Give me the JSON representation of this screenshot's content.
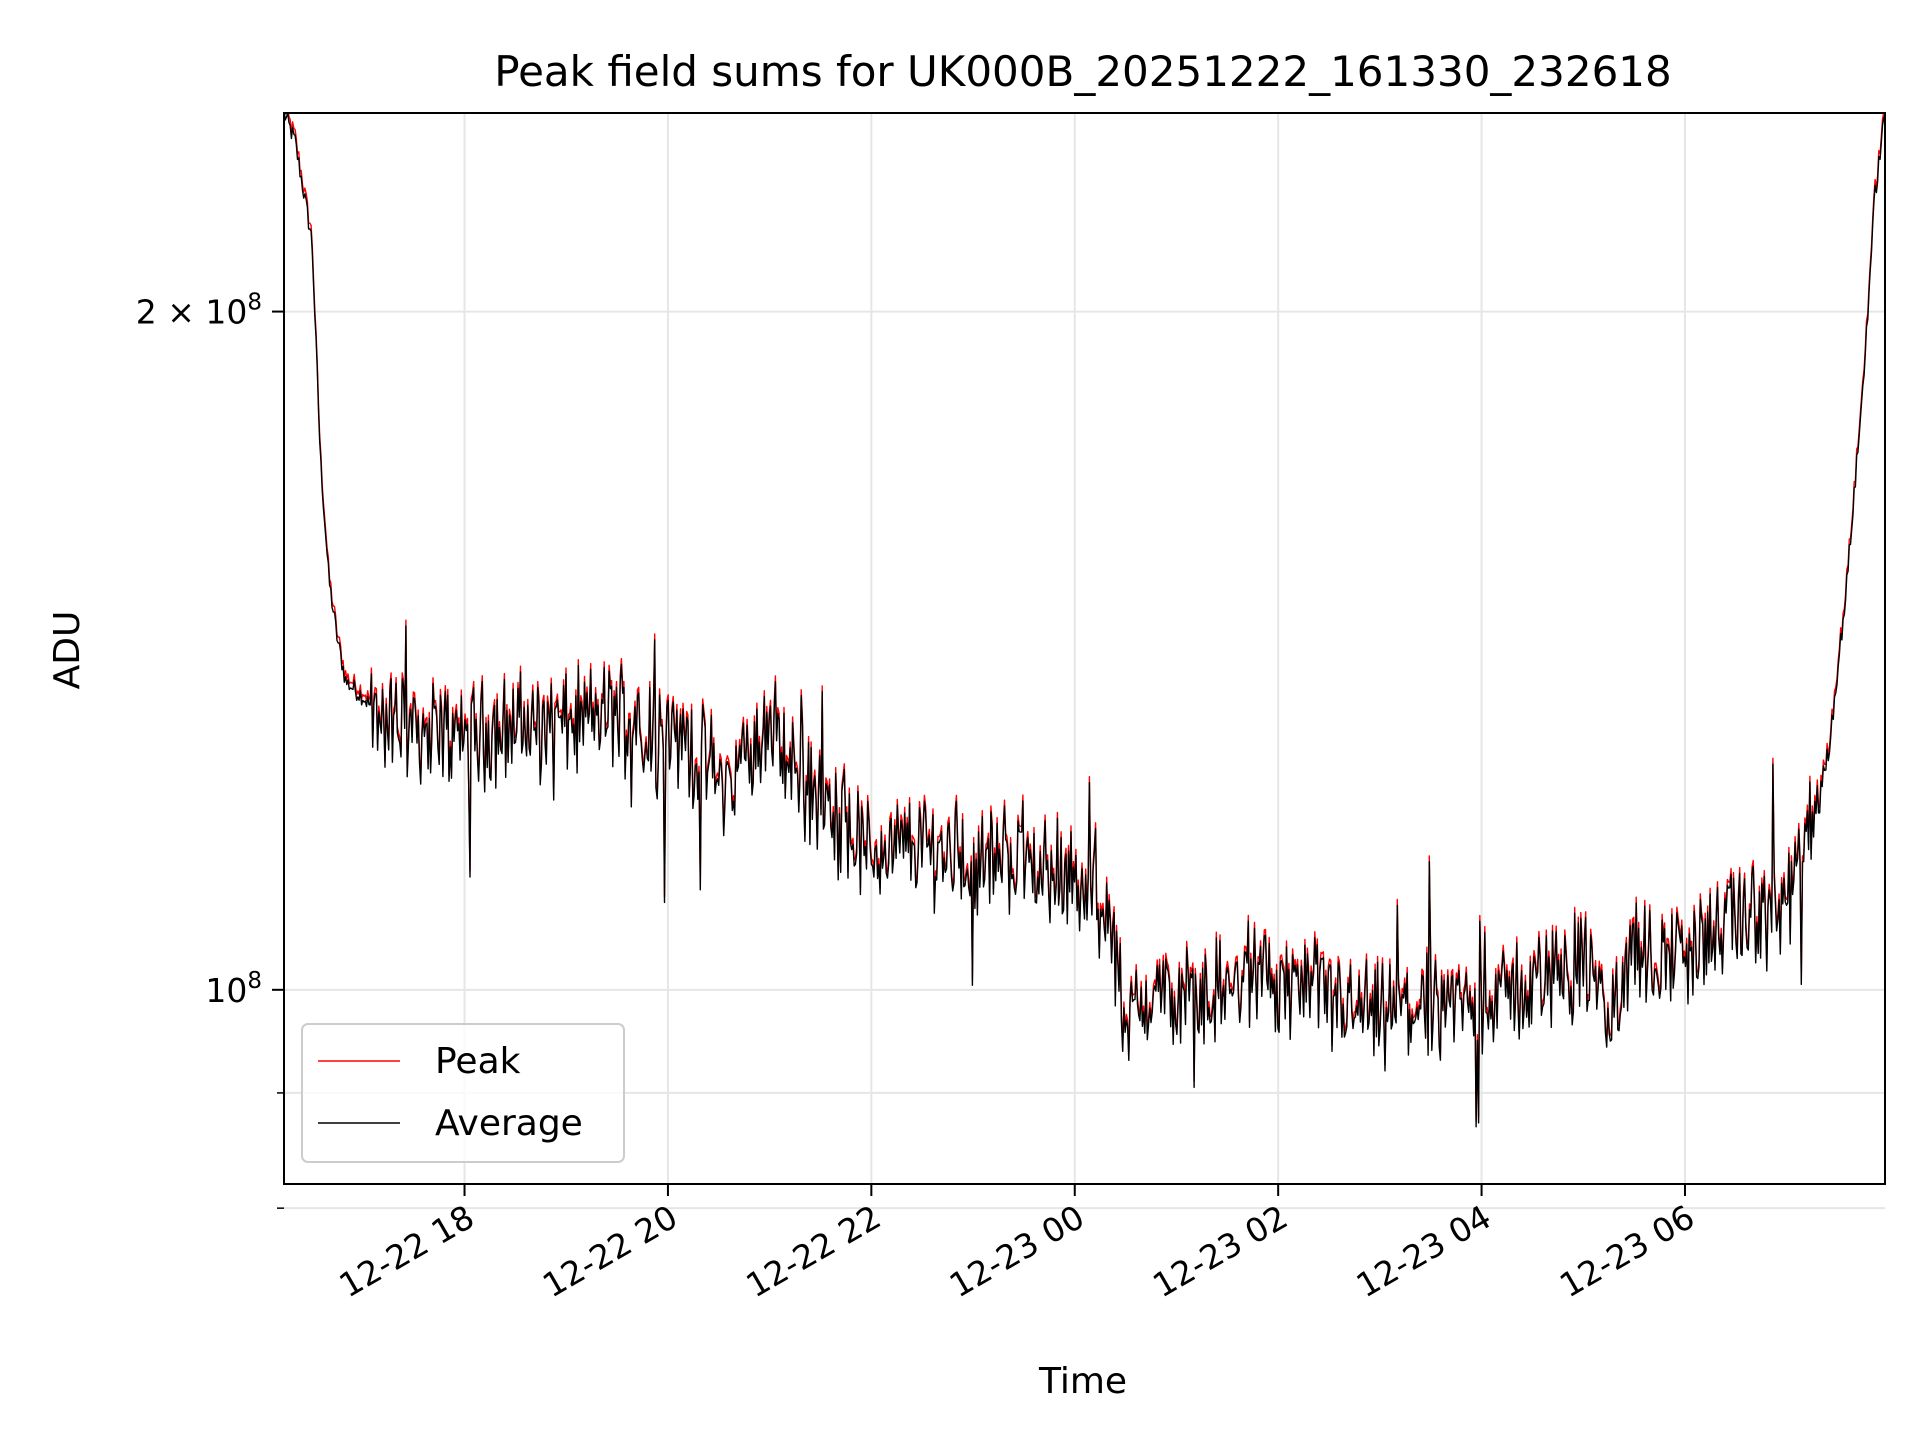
{
  "chart_data": {
    "type": "line",
    "title": "Peak field sums for UK000B_20251222_161330_232618",
    "xlabel": "Time",
    "ylabel": "ADU",
    "y_scale": "log",
    "x_range": [
      "2025-12-22 16:13:30",
      "2025-12-23 07:58:00"
    ],
    "ylim": [
      82000000,
      245000000
    ],
    "x_ticks": [
      "12-22 18",
      "12-22 20",
      "12-22 22",
      "12-23 00",
      "12-23 02",
      "12-23 04",
      "12-23 06"
    ],
    "x_tick_times": [
      "2025-12-22 18:00",
      "2025-12-22 20:00",
      "2025-12-22 22:00",
      "2025-12-23 00:00",
      "2025-12-23 02:00",
      "2025-12-23 04:00",
      "2025-12-23 06:00"
    ],
    "y_major_ticks": [
      {
        "value": 100000000,
        "label": "10",
        "exp": "8"
      },
      {
        "value": 200000000,
        "label": "2 × 10",
        "exp": "8"
      }
    ],
    "y_minor_ticks": [
      90000000,
      80000000
    ],
    "grid": true,
    "legend": {
      "placement": "lower-left"
    },
    "series": [
      {
        "name": "Peak",
        "color": "#ff0000",
        "offset": 1.006
      },
      {
        "name": "Average",
        "color": "#000000",
        "offset": 1.0
      }
    ],
    "x": [
      "2025-12-22 16:13:30",
      "2025-12-22 16:20",
      "2025-12-22 16:30",
      "2025-12-22 16:35",
      "2025-12-22 16:40",
      "2025-12-22 16:45",
      "2025-12-22 16:50",
      "2025-12-22 17:00",
      "2025-12-22 17:10",
      "2025-12-22 17:20",
      "2025-12-22 17:30",
      "2025-12-22 17:50",
      "2025-12-22 18:10",
      "2025-12-22 18:30",
      "2025-12-22 19:00",
      "2025-12-22 19:30",
      "2025-12-22 20:00",
      "2025-12-22 20:20",
      "2025-12-22 20:35",
      "2025-12-22 20:50",
      "2025-12-22 21:05",
      "2025-12-22 21:10",
      "2025-12-22 21:30",
      "2025-12-22 22:00",
      "2025-12-22 22:30",
      "2025-12-22 23:00",
      "2025-12-22 23:30",
      "2025-12-23 00:00",
      "2025-12-23 00:20",
      "2025-12-23 00:30",
      "2025-12-23 00:45",
      "2025-12-23 01:00",
      "2025-12-23 01:30",
      "2025-12-23 02:00",
      "2025-12-23 02:30",
      "2025-12-23 03:00",
      "2025-12-23 03:30",
      "2025-12-23 04:00",
      "2025-12-23 04:30",
      "2025-12-23 05:00",
      "2025-12-23 05:15",
      "2025-12-23 05:30",
      "2025-12-23 06:00",
      "2025-12-23 06:30",
      "2025-12-23 07:00",
      "2025-12-23 07:15",
      "2025-12-23 07:25",
      "2025-12-23 07:35",
      "2025-12-23 07:45",
      "2025-12-23 07:52",
      "2025-12-23 07:58"
    ],
    "values": [
      245000000,
      238000000,
      215000000,
      172000000,
      152000000,
      143000000,
      137000000,
      135000000,
      132000000,
      131000000,
      131000000,
      130000000,
      130000000,
      131000000,
      131000000,
      133000000,
      130000000,
      127000000,
      123000000,
      128000000,
      130000000,
      126000000,
      121000000,
      115000000,
      116000000,
      114000000,
      115000000,
      111000000,
      108000000,
      96000000,
      100000000,
      99000000,
      100000000,
      101000000,
      99000000,
      97000000,
      99000000,
      98000000,
      101000000,
      103000000,
      97000000,
      103000000,
      104000000,
      107000000,
      109000000,
      118000000,
      128000000,
      150000000,
      185000000,
      225000000,
      245000000
    ]
  }
}
